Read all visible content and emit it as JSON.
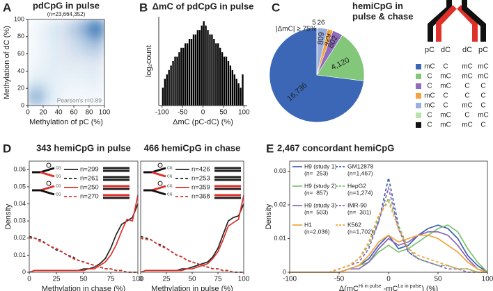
{
  "chart_data": [
    {
      "type": "heatmap",
      "letter": "A",
      "title": "pdCpG in pulse",
      "subtitle": "(n=23,664,352)",
      "xlabel": "Methylation of pC (%)",
      "ylabel": "Methylation of dC (%)",
      "annotation": "Pearson's r=0.89",
      "xlim": [
        0,
        100
      ],
      "ylim": [
        0,
        100
      ],
      "xticks": [
        0,
        20,
        40,
        60,
        80,
        100
      ],
      "yticks": [
        0,
        20,
        40,
        60,
        80,
        100
      ],
      "color": "#2166ac",
      "z": [
        [
          0.55,
          0.12,
          0.05,
          0.04,
          0.05
        ],
        [
          0.12,
          0.1,
          0.08,
          0.08,
          0.1
        ],
        [
          0.06,
          0.1,
          0.14,
          0.14,
          0.16
        ],
        [
          0.05,
          0.1,
          0.16,
          0.26,
          0.4
        ],
        [
          0.05,
          0.12,
          0.22,
          0.45,
          0.95
        ]
      ]
    },
    {
      "type": "histogram",
      "letter": "B",
      "title": "ΔmC of pdCpG in pulse",
      "xlabel": "ΔmC (pC-dC) (%)",
      "ylabel": "log₂count",
      "xlim": [
        -108,
        108
      ],
      "ylim": [
        0,
        20
      ],
      "xticks": [
        -100,
        -50,
        0,
        50,
        100
      ],
      "color": "#000000",
      "bins": [
        -100,
        -95,
        -90,
        -85,
        -80,
        -75,
        -70,
        -65,
        -60,
        -55,
        -50,
        -45,
        -40,
        -35,
        -30,
        -25,
        -20,
        -15,
        -10,
        -5,
        0,
        5,
        10,
        15,
        20,
        25,
        30,
        35,
        40,
        45,
        50,
        55,
        60,
        65,
        70,
        75,
        80,
        85,
        90,
        95,
        100
      ],
      "counts": [
        4,
        6,
        7,
        8,
        9,
        10,
        11,
        11,
        12,
        13,
        13,
        14,
        14,
        15,
        15,
        16,
        16,
        17,
        17,
        18,
        19,
        18,
        17,
        16,
        16,
        15,
        14,
        14,
        13,
        12,
        11,
        11,
        10,
        9,
        8,
        7,
        6,
        5,
        4,
        7
      ]
    },
    {
      "type": "pie",
      "letter": "C",
      "title": "hemiCpG in pulse & chase",
      "annotation": "|ΔmC| ≥ 75%",
      "strand_labels": [
        "pC",
        "dC",
        "dC",
        "pC"
      ],
      "direction": "counterclockwise",
      "categories": [
        [
          "mC",
          "C",
          "mC",
          "mC"
        ],
        [
          "C",
          "mC",
          "mC",
          "mC"
        ],
        [
          "C",
          "mC",
          "C",
          "C"
        ],
        [
          "mC",
          "C",
          "C",
          "C"
        ],
        [
          "mC",
          "C",
          "mC",
          "C"
        ],
        [
          "C",
          "mC",
          "C",
          "mC"
        ],
        [
          "C",
          "mC",
          "mC",
          "C"
        ]
      ],
      "values": [
        16736,
        4120,
        802,
        429,
        809,
        26,
        5
      ],
      "value_labels": [
        "16,736",
        "4,120",
        "802",
        "429",
        "809",
        "26",
        "5"
      ],
      "colors": [
        "#3b67b6",
        "#82c77a",
        "#8e6cbf",
        "#f5a33c",
        "#9cb0e0",
        "#b9e3ab",
        "#111111"
      ]
    },
    {
      "type": "line",
      "letter": "D",
      "title": "343 hemiCpG in pulse",
      "xlabel": "Methylation in chase (%)",
      "ylabel": "Density",
      "inset_label": "CG",
      "xlim": [
        0,
        100
      ],
      "ylim": [
        0,
        0.065
      ],
      "xticks": [
        0,
        25,
        50,
        75,
        100
      ],
      "yticks": [
        0,
        0.01,
        0.02,
        0.03,
        0.04,
        0.05,
        0.06
      ],
      "x": [
        0,
        5,
        10,
        15,
        20,
        25,
        30,
        35,
        40,
        45,
        50,
        55,
        60,
        65,
        70,
        75,
        80,
        85,
        90,
        95,
        100
      ],
      "series": [
        {
          "name": "n=299",
          "color": "#222222",
          "dash": false,
          "values": [
            0,
            0.001,
            0.001,
            0.001,
            0.001,
            0.001,
            0.001,
            0.001,
            0.001,
            0.001,
            0.002,
            0.002,
            0.003,
            0.005,
            0.008,
            0.014,
            0.022,
            0.028,
            0.03,
            0.032,
            0.04
          ]
        },
        {
          "name": "n=261",
          "color": "#222222",
          "dash": true,
          "values": [
            0.021,
            0.02,
            0.019,
            0.017,
            0.015,
            0.013,
            0.012,
            0.01,
            0.009,
            0.007,
            0.006,
            0.005,
            0.004,
            0.003,
            0.002,
            0.002,
            0.001,
            0.001,
            0,
            0,
            0
          ]
        },
        {
          "name": "n=250",
          "color": "#e0302a",
          "dash": false,
          "values": [
            0,
            0.001,
            0.001,
            0.001,
            0.001,
            0.001,
            0.001,
            0.001,
            0.001,
            0.001,
            0.001,
            0.002,
            0.002,
            0.004,
            0.006,
            0.01,
            0.016,
            0.024,
            0.031,
            0.03,
            0.045
          ]
        },
        {
          "name": "n=270",
          "color": "#e0302a",
          "dash": true,
          "values": [
            0.02,
            0.02,
            0.018,
            0.017,
            0.015,
            0.014,
            0.012,
            0.01,
            0.008,
            0.007,
            0.006,
            0.005,
            0.004,
            0.003,
            0.002,
            0.002,
            0.001,
            0.001,
            0,
            0,
            0
          ]
        }
      ]
    },
    {
      "type": "line",
      "title": "466 hemiCpG in chase",
      "xlabel": "Methylation in pulse (%)",
      "inset_label": "CG",
      "xlim": [
        0,
        100
      ],
      "ylim": [
        0,
        0.065
      ],
      "xticks": [
        0,
        25,
        50,
        75,
        100
      ],
      "x": [
        0,
        5,
        10,
        15,
        20,
        25,
        30,
        35,
        40,
        45,
        50,
        55,
        60,
        65,
        70,
        75,
        80,
        85,
        90,
        95,
        100
      ],
      "series": [
        {
          "name": "n=426",
          "color": "#222222",
          "dash": false,
          "values": [
            0,
            0.001,
            0.001,
            0.001,
            0.001,
            0.001,
            0.001,
            0.001,
            0.002,
            0.002,
            0.003,
            0.004,
            0.005,
            0.006,
            0.009,
            0.014,
            0.022,
            0.03,
            0.032,
            0.033,
            0.04
          ]
        },
        {
          "name": "n=253",
          "color": "#222222",
          "dash": true,
          "values": [
            0.021,
            0.02,
            0.019,
            0.017,
            0.016,
            0.014,
            0.012,
            0.01,
            0.009,
            0.007,
            0.006,
            0.005,
            0.004,
            0.003,
            0.002,
            0.002,
            0.001,
            0.001,
            0,
            0,
            0
          ]
        },
        {
          "name": "n=359",
          "color": "#e0302a",
          "dash": false,
          "values": [
            0,
            0.001,
            0.001,
            0.001,
            0.001,
            0.001,
            0.001,
            0.001,
            0.001,
            0.002,
            0.002,
            0.003,
            0.004,
            0.005,
            0.008,
            0.012,
            0.019,
            0.027,
            0.029,
            0.031,
            0.045
          ]
        },
        {
          "name": "n=368",
          "color": "#e0302a",
          "dash": true,
          "values": [
            0.02,
            0.019,
            0.019,
            0.017,
            0.015,
            0.014,
            0.012,
            0.01,
            0.009,
            0.007,
            0.006,
            0.005,
            0.004,
            0.003,
            0.002,
            0.002,
            0.001,
            0.001,
            0,
            0,
            0
          ]
        }
      ]
    },
    {
      "type": "line",
      "letter": "E",
      "title": "2,467 concordant hemiCpG",
      "xlabel": [
        "Δ(mC",
        "Hi in pulse",
        " -mC",
        "Lo in pulse",
        ") (%)"
      ],
      "ylabel": "Density",
      "xlim": [
        -100,
        100
      ],
      "ylim": [
        0,
        0.033
      ],
      "xticks": [
        -100,
        -50,
        0,
        50,
        100
      ],
      "yticks": [
        0,
        0.01,
        0.02,
        0.03
      ],
      "x": [
        -100,
        -90,
        -80,
        -70,
        -60,
        -50,
        -40,
        -30,
        -20,
        -10,
        0,
        10,
        20,
        30,
        40,
        50,
        60,
        70,
        80,
        90,
        100
      ],
      "series": [
        {
          "name": "H9 (study 1)",
          "n_label": "(n=  253)",
          "color": "#3a5fb0",
          "dash": false,
          "values": [
            0,
            0,
            0,
            0,
            0,
            0,
            0.001,
            0.002,
            0.004,
            0.008,
            0.011,
            0.007,
            0.008,
            0.011,
            0.013,
            0.014,
            0.013,
            0.01,
            0.005,
            0.002,
            0
          ]
        },
        {
          "name": "H9 (study 2)",
          "n_label": "(n=  857)",
          "color": "#7ac36a",
          "dash": false,
          "values": [
            0,
            0,
            0,
            0,
            0,
            0,
            0.001,
            0.002,
            0.003,
            0.006,
            0.008,
            0.006,
            0.007,
            0.009,
            0.011,
            0.013,
            0.014,
            0.012,
            0.007,
            0.003,
            0
          ]
        },
        {
          "name": "H9 (study 3)",
          "n_label": "(n=  503)",
          "color": "#8a63b8",
          "dash": false,
          "values": [
            0,
            0,
            0,
            0,
            0,
            0,
            0.001,
            0.001,
            0.003,
            0.007,
            0.01,
            0.008,
            0.009,
            0.011,
            0.012,
            0.012,
            0.011,
            0.008,
            0.004,
            0.001,
            0
          ]
        },
        {
          "name": "H1",
          "n_label": "(n=2,036)",
          "color": "#f5a23a",
          "dash": false,
          "values": [
            0,
            0,
            0,
            0,
            0,
            0,
            0.001,
            0.002,
            0.005,
            0.009,
            0.011,
            0.009,
            0.01,
            0.011,
            0.011,
            0.01,
            0.008,
            0.006,
            0.003,
            0.001,
            0
          ]
        },
        {
          "name": "GM12878",
          "n_label": "(n=1,467)",
          "color": "#3a5fb0",
          "dash": true,
          "values": [
            0,
            0,
            0,
            0,
            0,
            0.001,
            0.002,
            0.004,
            0.008,
            0.015,
            0.028,
            0.014,
            0.006,
            0.004,
            0.003,
            0.002,
            0.002,
            0.001,
            0.001,
            0,
            0
          ]
        },
        {
          "name": "HepG2",
          "n_label": "(n=1,274)",
          "color": "#7ac36a",
          "dash": true,
          "values": [
            0,
            0,
            0,
            0,
            0,
            0.001,
            0.002,
            0.004,
            0.008,
            0.016,
            0.022,
            0.014,
            0.007,
            0.004,
            0.003,
            0.002,
            0.002,
            0.001,
            0.001,
            0,
            0
          ]
        },
        {
          "name": "IMR-90",
          "n_label": "(n=  301)",
          "color": "#8a63b8",
          "dash": true,
          "values": [
            0,
            0,
            0,
            0,
            0,
            0.001,
            0.002,
            0.003,
            0.007,
            0.015,
            0.025,
            0.013,
            0.006,
            0.004,
            0.003,
            0.002,
            0.001,
            0.001,
            0,
            0,
            0
          ]
        },
        {
          "name": "K562",
          "n_label": "(n=1,702)",
          "color": "#f5a23a",
          "dash": true,
          "values": [
            0,
            0,
            0,
            0,
            0,
            0.001,
            0.002,
            0.004,
            0.009,
            0.017,
            0.021,
            0.013,
            0.007,
            0.005,
            0.004,
            0.003,
            0.002,
            0.001,
            0.001,
            0,
            0
          ]
        }
      ]
    }
  ]
}
